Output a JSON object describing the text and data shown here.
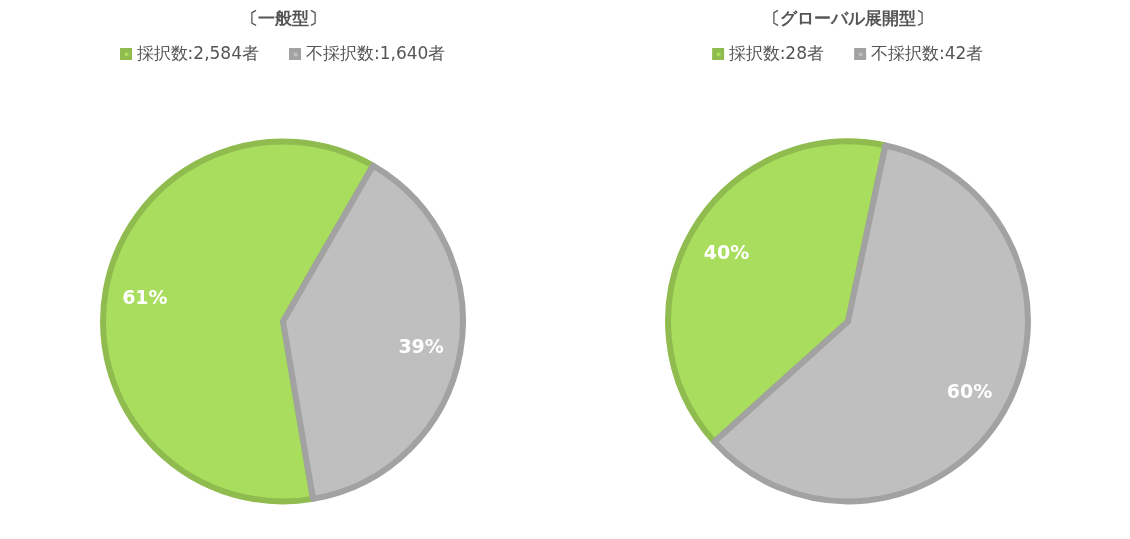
{
  "chart_data": [
    {
      "type": "pie",
      "title": "〔一般型〕",
      "categories": [
        "採択数:2,584者",
        "不採択数:1,640者"
      ],
      "values": [
        61,
        39
      ],
      "colors": [
        "#a9dd5e",
        "#bfbfbf"
      ],
      "value_labels": [
        "61%",
        "39%"
      ],
      "legend": "top"
    },
    {
      "type": "pie",
      "title": "〔グローバル展開型〕",
      "categories": [
        "採択数:28者",
        "不採択数:42者"
      ],
      "values": [
        40,
        60
      ],
      "colors": [
        "#a9dd5e",
        "#bfbfbf"
      ],
      "value_labels": [
        "40%",
        "60%"
      ],
      "legend": "top"
    }
  ]
}
